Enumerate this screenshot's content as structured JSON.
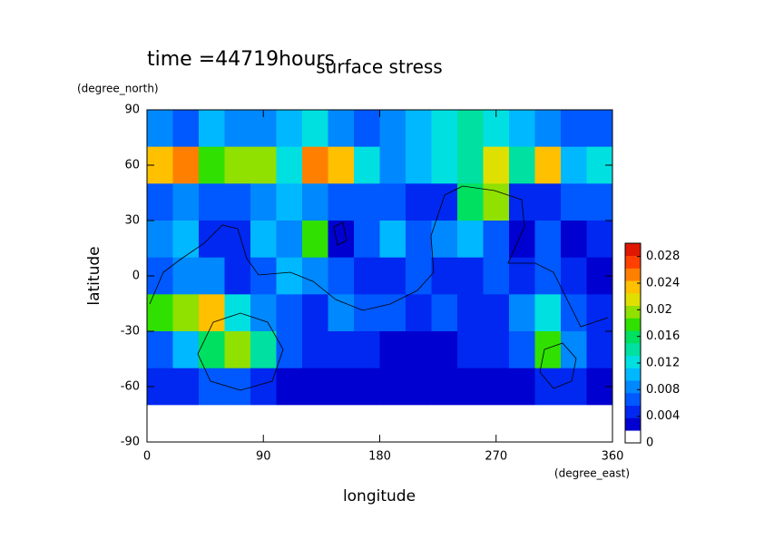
{
  "chart_data": {
    "type": "heatmap",
    "title": "surface stress",
    "annotation": "time =44719hours",
    "xlabel": "longitude",
    "ylabel": "latitude",
    "x_unit": "(degree_east)",
    "y_unit": "(degree_north)",
    "xlim": [
      0,
      360
    ],
    "ylim": [
      -90,
      90
    ],
    "xticks": [
      0,
      90,
      180,
      270,
      360
    ],
    "yticks": [
      -90,
      -60,
      -30,
      0,
      30,
      60,
      90
    ],
    "x": [
      10,
      30,
      50,
      70,
      90,
      110,
      130,
      150,
      170,
      190,
      210,
      230,
      250,
      270,
      290,
      310,
      330,
      350
    ],
    "y": [
      80,
      60,
      40,
      20,
      0,
      -20,
      -40,
      -60,
      -80
    ],
    "values": [
      [
        0.008,
        0.006,
        0.01,
        0.008,
        0.008,
        0.01,
        0.012,
        0.008,
        0.006,
        0.008,
        0.01,
        0.012,
        0.014,
        0.012,
        0.01,
        0.008,
        0.006,
        0.006
      ],
      [
        0.024,
        0.026,
        0.018,
        0.02,
        0.02,
        0.012,
        0.026,
        0.024,
        0.012,
        0.008,
        0.01,
        0.012,
        0.014,
        0.022,
        0.014,
        0.024,
        0.01,
        0.012
      ],
      [
        0.006,
        0.008,
        0.006,
        0.006,
        0.008,
        0.01,
        0.008,
        0.006,
        0.006,
        0.006,
        0.004,
        0.004,
        0.016,
        0.02,
        0.004,
        0.004,
        0.006,
        0.006
      ],
      [
        0.008,
        0.01,
        0.004,
        0.004,
        0.01,
        0.008,
        0.018,
        0.002,
        0.006,
        0.01,
        0.006,
        0.008,
        0.01,
        0.006,
        0.002,
        0.006,
        0.002,
        0.004
      ],
      [
        0.006,
        0.008,
        0.008,
        0.004,
        0.006,
        0.01,
        0.008,
        0.006,
        0.004,
        0.004,
        0.006,
        0.004,
        0.004,
        0.006,
        0.004,
        0.006,
        0.004,
        0.002
      ],
      [
        0.018,
        0.02,
        0.024,
        0.012,
        0.008,
        0.006,
        0.004,
        0.008,
        0.006,
        0.006,
        0.004,
        0.006,
        0.004,
        0.004,
        0.008,
        0.012,
        0.006,
        0.004
      ],
      [
        0.006,
        0.01,
        0.016,
        0.02,
        0.014,
        0.006,
        0.004,
        0.004,
        0.004,
        0.002,
        0.002,
        0.002,
        0.004,
        0.004,
        0.006,
        0.018,
        0.008,
        0.004
      ],
      [
        0.004,
        0.004,
        0.006,
        0.006,
        0.004,
        0.002,
        0.002,
        0.002,
        0.002,
        0.002,
        0.002,
        0.002,
        0.002,
        0.002,
        0.002,
        0.004,
        0.004,
        0.002
      ],
      [
        0.001,
        0.001,
        0.001,
        0.001,
        0.001,
        0.001,
        0.001,
        0.001,
        0.001,
        0.001,
        0.001,
        0.001,
        0.001,
        0.001,
        0.001,
        0.001,
        0.001,
        0.001
      ]
    ],
    "colorbar": {
      "lim": [
        0,
        0.03
      ],
      "ticks": [
        0,
        0.004,
        0.008,
        0.012,
        0.016,
        0.02,
        0.024,
        0.028
      ],
      "colors": [
        "#ffffff",
        "#0000d0",
        "#0028f0",
        "#0058ff",
        "#0088ff",
        "#00b8ff",
        "#00e0e0",
        "#00e0a0",
        "#00e060",
        "#30e000",
        "#90e000",
        "#e0e000",
        "#ffc000",
        "#ff8000",
        "#ff4000",
        "#e01800"
      ]
    }
  }
}
